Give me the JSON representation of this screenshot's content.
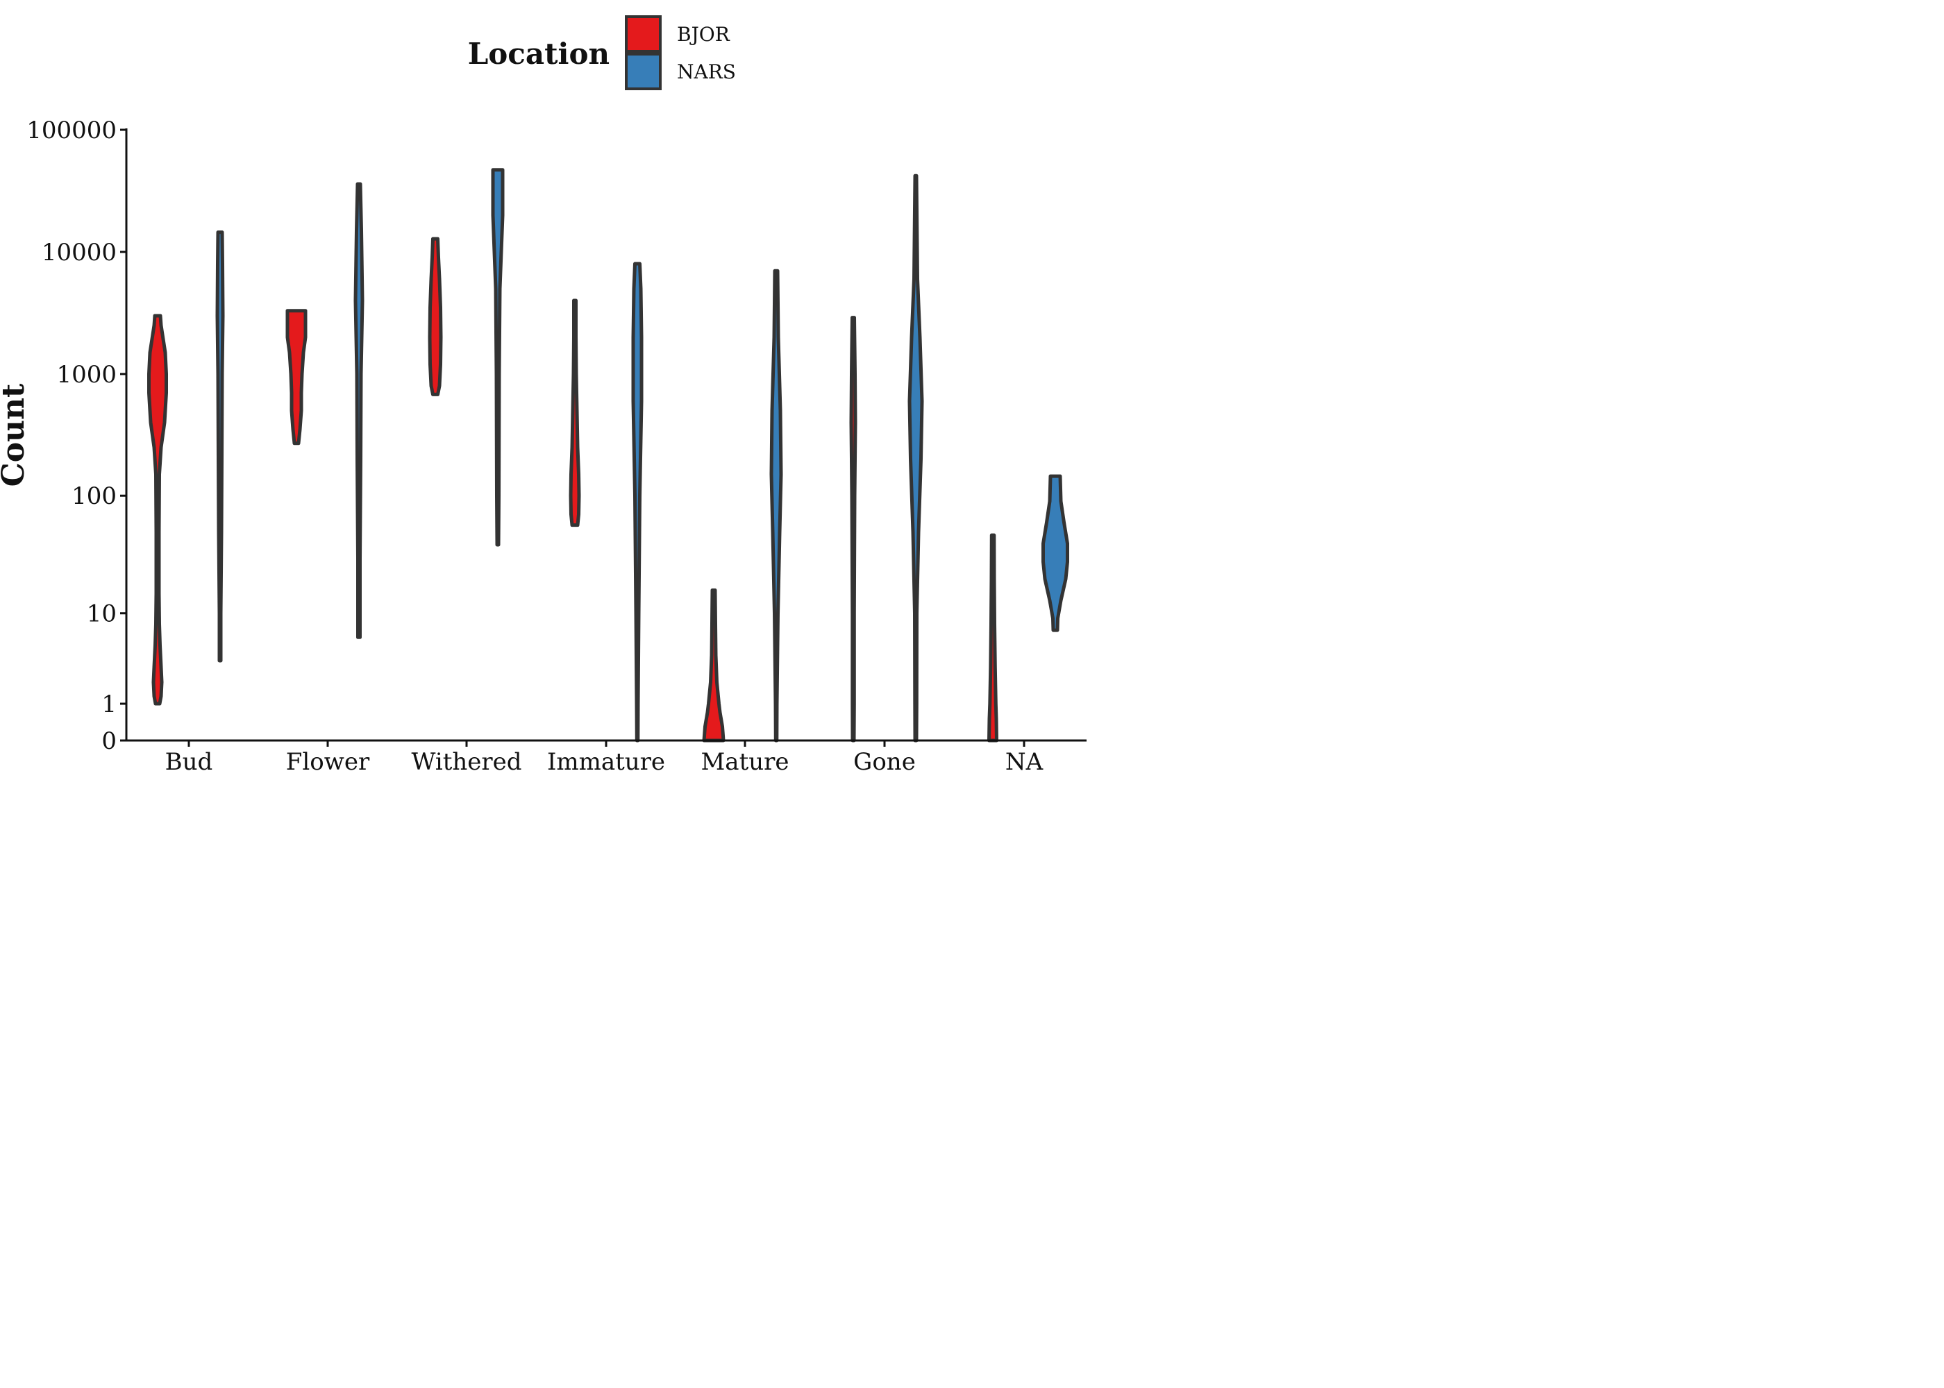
{
  "chart_data": {
    "type": "violin",
    "ylabel": "Count",
    "xlabel": "",
    "y_scale": "pseudo-log",
    "y_ticks": [
      {
        "value": 0,
        "label": "0"
      },
      {
        "value": 1,
        "label": "1"
      },
      {
        "value": 10,
        "label": "10"
      },
      {
        "value": 100,
        "label": "100"
      },
      {
        "value": 1000,
        "label": "1000"
      },
      {
        "value": 10000,
        "label": "10000"
      },
      {
        "value": 100000,
        "label": "100000"
      }
    ],
    "ylim": [
      0,
      100000
    ],
    "grid": false,
    "legend": {
      "title": "Location",
      "placement": "top"
    },
    "categories": [
      "Bud",
      "Flower",
      "Withered",
      "Immature",
      "Mature",
      "Gone",
      "NA"
    ],
    "series": [
      {
        "name": "BJOR",
        "color": "#e41a1c",
        "violins": [
          {
            "category": "Bud",
            "min": 1,
            "max": 3000,
            "profile": [
              [
                1,
                0.06
              ],
              [
                1.3,
                0.1
              ],
              [
                2,
                0.12
              ],
              [
                3,
                0.1
              ],
              [
                5,
                0.07
              ],
              [
                8,
                0.05
              ],
              [
                15,
                0.04
              ],
              [
                50,
                0.04
              ],
              [
                150,
                0.05
              ],
              [
                250,
                0.1
              ],
              [
                400,
                0.2
              ],
              [
                700,
                0.25
              ],
              [
                1000,
                0.25
              ],
              [
                1500,
                0.22
              ],
              [
                2500,
                0.1
              ],
              [
                3000,
                0.08
              ]
            ]
          },
          {
            "category": "Flower",
            "min": 270,
            "max": 3300,
            "profile": [
              [
                270,
                0.06
              ],
              [
                350,
                0.1
              ],
              [
                500,
                0.14
              ],
              [
                700,
                0.14
              ],
              [
                1000,
                0.16
              ],
              [
                1500,
                0.2
              ],
              [
                2000,
                0.26
              ],
              [
                2600,
                0.26
              ],
              [
                3300,
                0.26
              ]
            ]
          },
          {
            "category": "Withered",
            "min": 680,
            "max": 12800,
            "profile": [
              [
                680,
                0.07
              ],
              [
                800,
                0.12
              ],
              [
                1200,
                0.15
              ],
              [
                2000,
                0.16
              ],
              [
                3500,
                0.15
              ],
              [
                6000,
                0.12
              ],
              [
                9000,
                0.09
              ],
              [
                12800,
                0.07
              ]
            ]
          },
          {
            "category": "Immature",
            "min": 57,
            "max": 4000,
            "profile": [
              [
                57,
                0.08
              ],
              [
                70,
                0.11
              ],
              [
                100,
                0.12
              ],
              [
                150,
                0.11
              ],
              [
                250,
                0.08
              ],
              [
                500,
                0.06
              ],
              [
                1000,
                0.04
              ],
              [
                2000,
                0.03
              ],
              [
                4000,
                0.03
              ]
            ]
          },
          {
            "category": "Mature",
            "min": 0,
            "max": 16,
            "profile": [
              [
                0,
                0.28
              ],
              [
                0.3,
                0.25
              ],
              [
                0.7,
                0.18
              ],
              [
                1,
                0.15
              ],
              [
                2,
                0.09
              ],
              [
                4,
                0.06
              ],
              [
                8,
                0.05
              ],
              [
                16,
                0.04
              ]
            ]
          },
          {
            "category": "Gone",
            "min": 0,
            "max": 2900,
            "profile": [
              [
                0,
                0.02
              ],
              [
                1,
                0.025
              ],
              [
                10,
                0.025
              ],
              [
                100,
                0.04
              ],
              [
                400,
                0.06
              ],
              [
                1000,
                0.05
              ],
              [
                2900,
                0.03
              ]
            ]
          },
          {
            "category": "NA",
            "min": 0,
            "max": 47,
            "profile": [
              [
                0,
                0.11
              ],
              [
                0.5,
                0.1
              ],
              [
                1,
                0.085
              ],
              [
                3,
                0.065
              ],
              [
                8,
                0.05
              ],
              [
                20,
                0.04
              ],
              [
                47,
                0.035
              ]
            ]
          }
        ]
      },
      {
        "name": "NARS",
        "color": "#377eb8",
        "violins": [
          {
            "category": "Bud",
            "min": 3.5,
            "max": 14500,
            "profile": [
              [
                3.5,
                0.02
              ],
              [
                10,
                0.02
              ],
              [
                50,
                0.04
              ],
              [
                200,
                0.05
              ],
              [
                1000,
                0.06
              ],
              [
                3000,
                0.08
              ],
              [
                8000,
                0.07
              ],
              [
                14500,
                0.06
              ]
            ]
          },
          {
            "category": "Flower",
            "min": 6,
            "max": 36000,
            "profile": [
              [
                6,
                0.03
              ],
              [
                30,
                0.03
              ],
              [
                200,
                0.05
              ],
              [
                1000,
                0.06
              ],
              [
                4000,
                0.1
              ],
              [
                15000,
                0.07
              ],
              [
                36000,
                0.04
              ]
            ]
          },
          {
            "category": "Withered",
            "min": 39,
            "max": 47000,
            "profile": [
              [
                39,
                0.02
              ],
              [
                100,
                0.03
              ],
              [
                1000,
                0.04
              ],
              [
                5000,
                0.06
              ],
              [
                20000,
                0.14
              ],
              [
                47000,
                0.14
              ]
            ]
          },
          {
            "category": "Immature",
            "min": 0,
            "max": 8000,
            "profile": [
              [
                0,
                0.015
              ],
              [
                1,
                0.02
              ],
              [
                10,
                0.04
              ],
              [
                100,
                0.07
              ],
              [
                600,
                0.12
              ],
              [
                2000,
                0.12
              ],
              [
                5000,
                0.1
              ],
              [
                8000,
                0.07
              ]
            ]
          },
          {
            "category": "Mature",
            "min": 0,
            "max": 7000,
            "profile": [
              [
                0,
                0.015
              ],
              [
                1,
                0.02
              ],
              [
                10,
                0.05
              ],
              [
                50,
                0.1
              ],
              [
                150,
                0.14
              ],
              [
                500,
                0.12
              ],
              [
                2000,
                0.06
              ],
              [
                7000,
                0.04
              ]
            ]
          },
          {
            "category": "Gone",
            "min": 0,
            "max": 42000,
            "profile": [
              [
                0,
                0.02
              ],
              [
                1,
                0.025
              ],
              [
                10,
                0.03
              ],
              [
                50,
                0.08
              ],
              [
                200,
                0.15
              ],
              [
                600,
                0.18
              ],
              [
                2000,
                0.12
              ],
              [
                6000,
                0.05
              ],
              [
                42000,
                0.02
              ]
            ]
          },
          {
            "category": "NA",
            "min": 7,
            "max": 145,
            "profile": [
              [
                7,
                0.06
              ],
              [
                9,
                0.07
              ],
              [
                13,
                0.16
              ],
              [
                20,
                0.3
              ],
              [
                28,
                0.35
              ],
              [
                40,
                0.35
              ],
              [
                60,
                0.25
              ],
              [
                90,
                0.16
              ],
              [
                145,
                0.14
              ]
            ]
          }
        ]
      }
    ]
  }
}
